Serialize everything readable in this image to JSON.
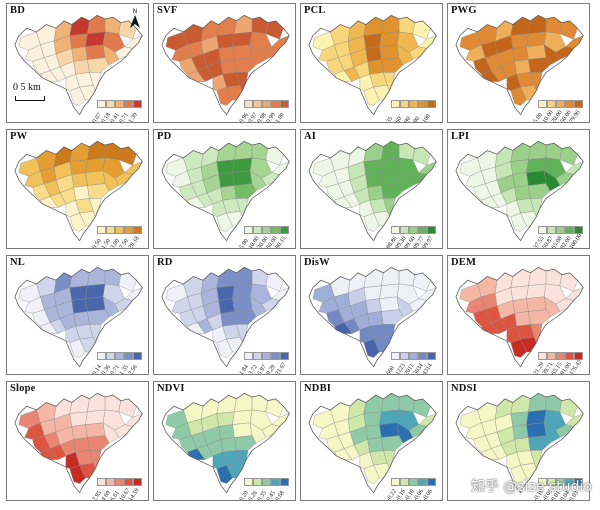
{
  "panels": [
    {
      "title": "BD",
      "colors": [
        "#fbf1df",
        "#f7d7a8",
        "#f1b275",
        "#e07a4c",
        "#c43a2e"
      ],
      "ticks": [
        "0.07",
        "0.18",
        "0.41",
        "0.71",
        "1.39"
      ],
      "focus": "center-north",
      "north": "N",
      "scalebar": "0  5 km"
    },
    {
      "title": "SVF",
      "colors": [
        "#f7e0c4",
        "#f3c59a",
        "#eda571",
        "#e27e4c",
        "#c95a32"
      ],
      "ticks": [
        "0.96",
        "0.97",
        "0.98",
        "0.99",
        "1.00"
      ],
      "focus": "high"
    },
    {
      "title": "PCL",
      "colors": [
        "#fdf3b0",
        "#f8d77a",
        "#f0b650",
        "#e0922e",
        "#c46c19"
      ],
      "ticks": [
        "35",
        "60",
        "80",
        "90",
        "100"
      ],
      "focus": "center"
    },
    {
      "title": "PWG",
      "colors": [
        "#fdf0c8",
        "#f7d08c",
        "#eeae5a",
        "#e08a35",
        "#c4651c"
      ],
      "ticks": [
        "5.00",
        "10.00",
        "20.00",
        "50.00",
        "79.96"
      ],
      "focus": "high"
    },
    {
      "title": "PW",
      "colors": [
        "#fdf3c8",
        "#f8dc8a",
        "#f0c059",
        "#e49e32",
        "#cc7a1a"
      ],
      "ticks": [
        "0.50",
        "1.50",
        "3.00",
        "7.50",
        "28.18"
      ],
      "focus": "north"
    },
    {
      "title": "PD",
      "colors": [
        "#eef7e6",
        "#cde9bf",
        "#a6d493",
        "#76bb66",
        "#3e9a3e"
      ],
      "ticks": [
        "5.00",
        "10.00",
        "30.00",
        "50.00",
        "80.15"
      ],
      "focus": "center"
    },
    {
      "title": "AI",
      "colors": [
        "#eef7e6",
        "#c6e6b6",
        "#9bd08a",
        "#62b25a",
        "#2a8a33"
      ],
      "ticks": [
        "98.86",
        "99.30",
        "99.60",
        "99.77",
        "99.97"
      ],
      "focus": "center-east"
    },
    {
      "title": "LPI",
      "colors": [
        "#eef7e6",
        "#c6e6b6",
        "#9bd08a",
        "#62b25a",
        "#2a8a33"
      ],
      "ticks": [
        "37.55",
        "50.87",
        "65.08",
        "82.00",
        "100.00"
      ],
      "focus": "center-east"
    },
    {
      "title": "NL",
      "colors": [
        "#f0f1f8",
        "#cfd5ea",
        "#a9b5da",
        "#7b8fc7",
        "#4a67ad"
      ],
      "ticks": [
        "0.14",
        "0.36",
        "0.71",
        "1.35",
        "2.56"
      ],
      "focus": "center"
    },
    {
      "title": "RD",
      "colors": [
        "#f0f1f8",
        "#cfd5ea",
        "#a9b5da",
        "#7b8fc7",
        "#4a67ad"
      ],
      "ticks": [
        "1.84",
        "3.72",
        "5.97",
        "9.29",
        "21.67"
      ],
      "focus": "center"
    },
    {
      "title": "DisW",
      "colors": [
        "#eef0f8",
        "#c9d1ea",
        "#a0afd8",
        "#7489c4",
        "#4764aa"
      ],
      "ticks": [
        "660",
        "1223",
        "2011",
        "3034",
        "4314"
      ],
      "focus": "south"
    },
    {
      "title": "DEM",
      "colors": [
        "#fbe3dc",
        "#f4b7a6",
        "#e98570",
        "#dd5540",
        "#c72b22"
      ],
      "ticks": [
        "21.29",
        "39.71",
        "63.15",
        "91.06",
        "176.42"
      ],
      "focus": "south"
    },
    {
      "title": "Slope",
      "colors": [
        "#fbe3dc",
        "#f4b7a6",
        "#e98570",
        "#dd5540",
        "#c72b22"
      ],
      "ticks": [
        "2.95",
        "4.69",
        "6.61",
        "10.67",
        "14.59"
      ],
      "focus": "south"
    },
    {
      "title": "NDVI",
      "colors": [
        "#f6f7c6",
        "#cfe7a8",
        "#8fcaa7",
        "#4fa6b8",
        "#2c6fb0"
      ],
      "ticks": [
        "0.20",
        "0.26",
        "0.35",
        "0.45",
        "0.68"
      ],
      "focus": "south"
    },
    {
      "title": "NDBI",
      "colors": [
        "#f6f7c6",
        "#cfe7a8",
        "#8fcaa7",
        "#4fa6b8",
        "#2c6fb0"
      ],
      "ticks": [
        "-0.22",
        "-0.16",
        "-0.10",
        "-0.06",
        "-0.06"
      ],
      "focus": "center-east"
    },
    {
      "title": "NDSI",
      "colors": [
        "#f6f7c6",
        "#cfe7a8",
        "#8fcaa7",
        "#4fa6b8",
        "#2c6fb0"
      ],
      "ticks": [
        "-0.10",
        "-0.05",
        "0.01",
        "0.04",
        "0.03"
      ],
      "focus": "center-east"
    }
  ],
  "watermark": "知乎 @size studio"
}
